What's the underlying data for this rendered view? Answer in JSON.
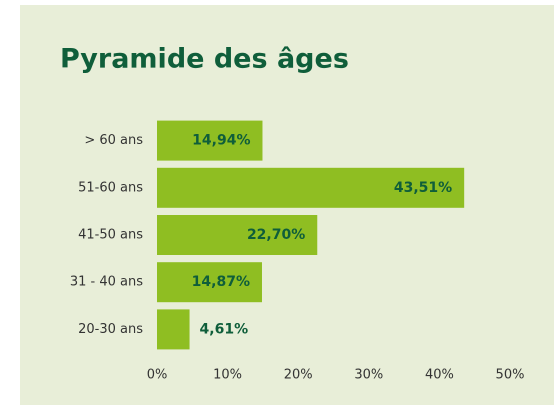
{
  "chart_data": {
    "type": "bar",
    "orientation": "horizontal",
    "title": "Pyramide des âges",
    "categories": [
      "> 60 ans",
      "51-60 ans",
      "41-50 ans",
      "31 - 40 ans",
      "20-30 ans"
    ],
    "values": [
      14.94,
      43.51,
      22.7,
      14.87,
      4.61
    ],
    "value_labels": [
      "14,94%",
      "43,51%",
      "22,70%",
      "14,87%",
      "4,61%"
    ],
    "color": "#8fbe22",
    "xlim": [
      0,
      50
    ],
    "xticks": [
      {
        "value": 0,
        "label": "0%"
      },
      {
        "value": 10,
        "label": "10%"
      },
      {
        "value": 20,
        "label": "20%"
      },
      {
        "value": 30,
        "label": "30%"
      },
      {
        "value": 40,
        "label": "40%"
      },
      {
        "value": 50,
        "label": "50%"
      }
    ],
    "grid": false
  }
}
